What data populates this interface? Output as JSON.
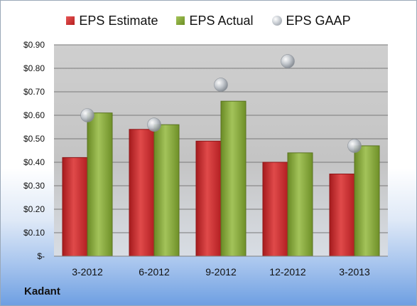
{
  "company": "Kadant",
  "chart_data": {
    "type": "bar",
    "categories": [
      "3-2012",
      "6-2012",
      "9-2012",
      "12-2012",
      "3-2013"
    ],
    "series": [
      {
        "name": "EPS Estimate",
        "kind": "bar",
        "color": "#c0282a",
        "values": [
          0.42,
          0.54,
          0.49,
          0.4,
          0.35
        ]
      },
      {
        "name": "EPS Actual",
        "kind": "bar",
        "color": "#7a9b34",
        "values": [
          0.61,
          0.56,
          0.66,
          0.44,
          0.47
        ]
      },
      {
        "name": "EPS GAAP",
        "kind": "marker",
        "color": "#a9aeb4",
        "values": [
          0.6,
          0.56,
          0.73,
          0.83,
          0.47
        ]
      }
    ],
    "ylim": [
      0,
      0.9
    ],
    "yticks": [
      0,
      0.1,
      0.2,
      0.3,
      0.4,
      0.5,
      0.6,
      0.7,
      0.8,
      0.9
    ],
    "ytick_labels": [
      "$-",
      "$0.10",
      "$0.20",
      "$0.30",
      "$0.40",
      "$0.50",
      "$0.60",
      "$0.70",
      "$0.80",
      "$0.90"
    ],
    "grid": true,
    "legend": "top"
  }
}
